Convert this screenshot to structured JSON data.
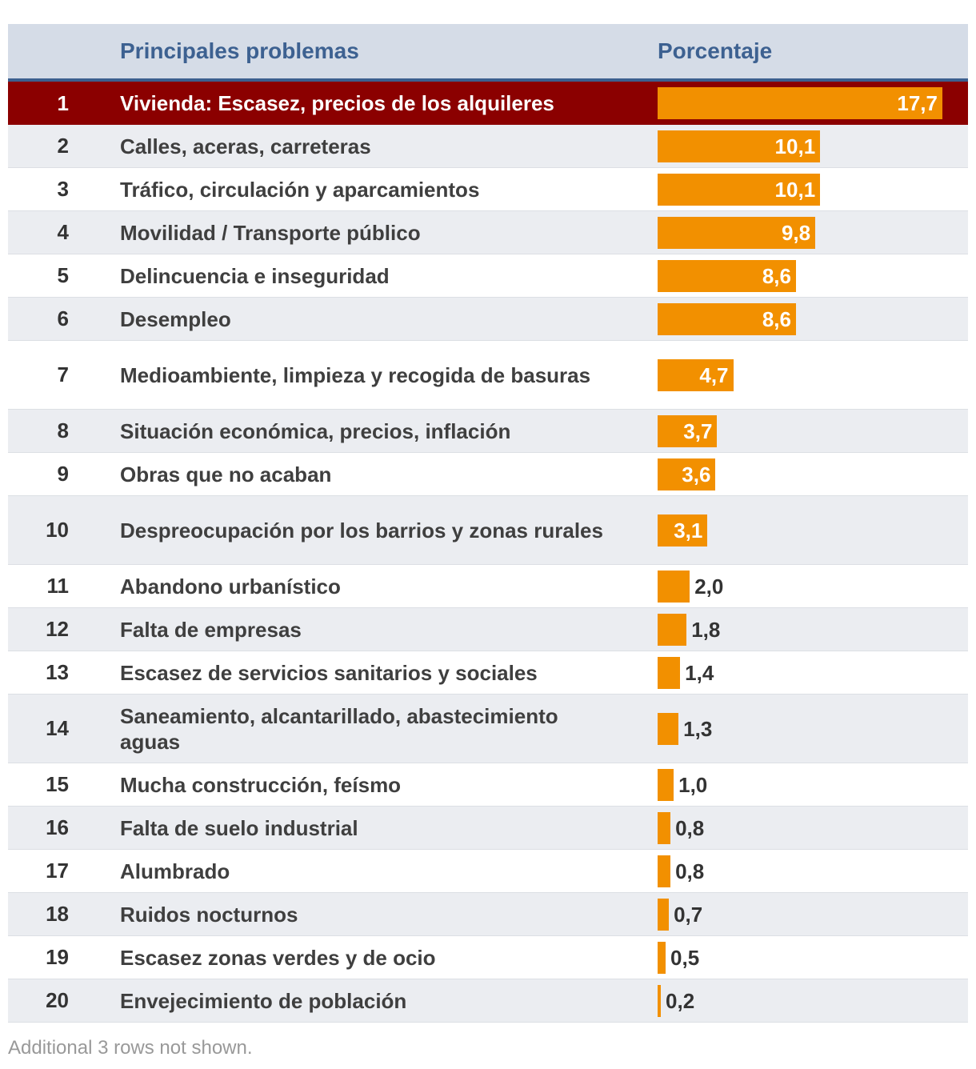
{
  "chart_data": {
    "type": "table",
    "columns": [
      "",
      "Principales problemas",
      "Porcentaje"
    ],
    "rows": [
      {
        "rank": "1",
        "label": "Vivienda: Escasez, precios de los alquileres",
        "value": 17.7,
        "value_label": "17,7",
        "highlight": true
      },
      {
        "rank": "2",
        "label": "Calles, aceras, carreteras",
        "value": 10.1,
        "value_label": "10,1"
      },
      {
        "rank": "3",
        "label": "Tráfico, circulación y aparcamientos",
        "value": 10.1,
        "value_label": "10,1"
      },
      {
        "rank": "4",
        "label": "Movilidad / Transporte público",
        "value": 9.8,
        "value_label": "9,8"
      },
      {
        "rank": "5",
        "label": "Delincuencia e inseguridad",
        "value": 8.6,
        "value_label": "8,6"
      },
      {
        "rank": "6",
        "label": "Desempleo",
        "value": 8.6,
        "value_label": "8,6"
      },
      {
        "rank": "7",
        "label": "Medioambiente, limpieza y recogida de basuras",
        "value": 4.7,
        "value_label": "4,7"
      },
      {
        "rank": "8",
        "label": "Situación económica, precios, inflación",
        "value": 3.7,
        "value_label": "3,7"
      },
      {
        "rank": "9",
        "label": "Obras que no acaban",
        "value": 3.6,
        "value_label": "3,6"
      },
      {
        "rank": "10",
        "label": "Despreocupación por los barrios y zonas rurales",
        "value": 3.1,
        "value_label": "3,1"
      },
      {
        "rank": "11",
        "label": "Abandono urbanístico",
        "value": 2.0,
        "value_label": "2,0"
      },
      {
        "rank": "12",
        "label": "Falta de empresas",
        "value": 1.8,
        "value_label": "1,8"
      },
      {
        "rank": "13",
        "label": "Escasez de servicios sanitarios y sociales",
        "value": 1.4,
        "value_label": "1,4"
      },
      {
        "rank": "14",
        "label": "Saneamiento, alcantarillado, abastecimiento aguas",
        "value": 1.3,
        "value_label": "1,3"
      },
      {
        "rank": "15",
        "label": "Mucha construcción, feísmo",
        "value": 1.0,
        "value_label": "1,0"
      },
      {
        "rank": "16",
        "label": "Falta de suelo industrial",
        "value": 0.8,
        "value_label": "0,8"
      },
      {
        "rank": "17",
        "label": "Alumbrado",
        "value": 0.8,
        "value_label": "0,8"
      },
      {
        "rank": "18",
        "label": "Ruidos nocturnos",
        "value": 0.7,
        "value_label": "0,7"
      },
      {
        "rank": "19",
        "label": "Escasez zonas verdes y de ocio",
        "value": 0.5,
        "value_label": "0,5"
      },
      {
        "rank": "20",
        "label": "Envejecimiento de población",
        "value": 0.2,
        "value_label": "0,2"
      }
    ],
    "xlim": [
      0,
      17.7
    ],
    "colors": {
      "bar": "#f29000",
      "highlight_row": "#8b0000",
      "header_bg": "#d5dce7",
      "header_text": "#3d6191"
    }
  },
  "footnote": "Additional 3 rows not shown."
}
